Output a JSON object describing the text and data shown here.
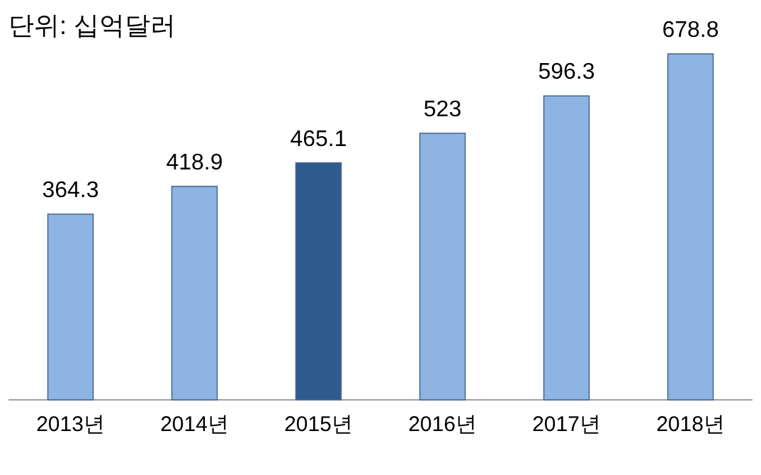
{
  "chart_data": {
    "type": "bar",
    "title": "단위: 십억달러",
    "categories": [
      "2013년",
      "2014년",
      "2015년",
      "2016년",
      "2017년",
      "2018년"
    ],
    "values": [
      364.3,
      418.9,
      465.1,
      523,
      596.3,
      678.8
    ],
    "colors": [
      "#8db4e2",
      "#8db4e2",
      "#2f5a8e",
      "#8db4e2",
      "#8db4e2",
      "#8db4e2"
    ],
    "data_labels": true
  }
}
